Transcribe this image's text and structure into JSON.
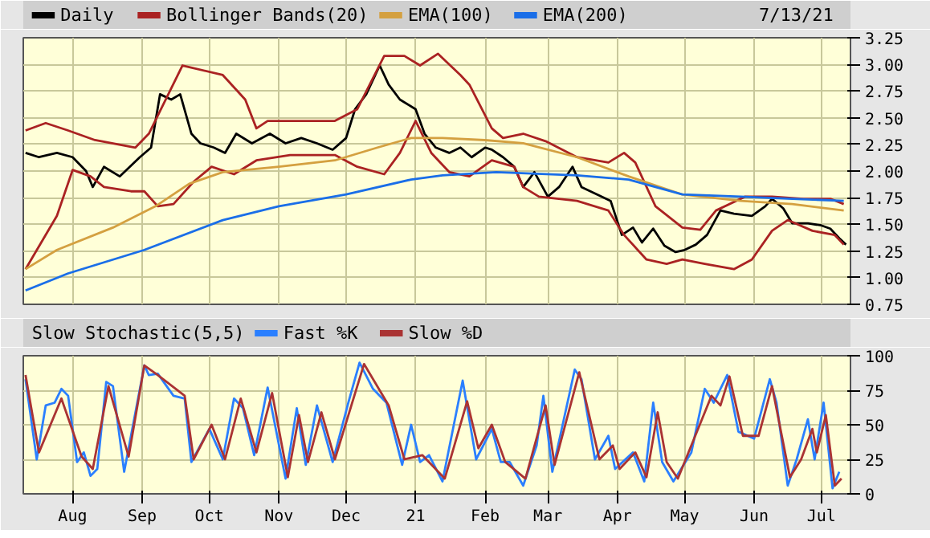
{
  "chart_data": [
    {
      "type": "line",
      "annotations": [
        "7/13/21"
      ],
      "legend": "top",
      "grid": true,
      "tick_labels": "y",
      "xlim": [
        "2020-07-10",
        "2021-07-14"
      ],
      "xticks": [
        {
          "value": "2020-08-01",
          "label": null
        },
        {
          "value": "2020-09-01",
          "label": null
        },
        {
          "value": "2020-10-01",
          "label": null
        },
        {
          "value": "2020-11-01",
          "label": null
        },
        {
          "value": "2020-12-01",
          "label": null
        },
        {
          "value": "2021-01-01",
          "label": null
        },
        {
          "value": "2021-02-01",
          "label": null
        },
        {
          "value": "2021-03-01",
          "label": null
        },
        {
          "value": "2021-04-01",
          "label": null
        },
        {
          "value": "2021-05-01",
          "label": null
        },
        {
          "value": "2021-06-01",
          "label": null
        },
        {
          "value": "2021-07-01",
          "label": null
        }
      ],
      "ylim": [
        0.75,
        3.25
      ],
      "yticks": [
        {
          "value": 0.75,
          "label": "0.75"
        },
        {
          "value": 1,
          "label": "1.00"
        },
        {
          "value": 1.25,
          "label": "1.25"
        },
        {
          "value": 1.5,
          "label": "1.50"
        },
        {
          "value": 1.75,
          "label": "1.75"
        },
        {
          "value": 2,
          "label": "2.00"
        },
        {
          "value": 2.25,
          "label": "2.25"
        },
        {
          "value": 2.5,
          "label": "2.50"
        },
        {
          "value": 2.75,
          "label": "2.75"
        },
        {
          "value": 3,
          "label": "3.00"
        },
        {
          "value": 3.25,
          "label": "3.25"
        }
      ],
      "series": [
        {
          "name": "Daily",
          "color": "#000000",
          "x": [
            "2020-07-11",
            "2020-07-17",
            "2020-07-25",
            "2020-08-01",
            "2020-08-07",
            "2020-08-10",
            "2020-08-15",
            "2020-08-22",
            "2020-08-31",
            "2020-09-05",
            "2020-09-09",
            "2020-09-14",
            "2020-09-18",
            "2020-09-23",
            "2020-09-27",
            "2020-10-03",
            "2020-10-08",
            "2020-10-13",
            "2020-10-20",
            "2020-10-28",
            "2020-11-04",
            "2020-11-11",
            "2020-11-18",
            "2020-11-25",
            "2020-12-01",
            "2020-12-05",
            "2020-12-10",
            "2020-12-16",
            "2020-12-20",
            "2020-12-25",
            "2021-01-01",
            "2021-01-05",
            "2021-01-10",
            "2021-01-16",
            "2021-01-21",
            "2021-01-26",
            "2021-02-01",
            "2021-02-04",
            "2021-02-09",
            "2021-02-14",
            "2021-02-18",
            "2021-02-23",
            "2021-03-01",
            "2021-03-06",
            "2021-03-12",
            "2021-03-16",
            "2021-03-23",
            "2021-03-29",
            "2021-04-03",
            "2021-04-08",
            "2021-04-12",
            "2021-04-17",
            "2021-04-22",
            "2021-04-27",
            "2021-05-01",
            "2021-05-06",
            "2021-05-11",
            "2021-05-17",
            "2021-05-23",
            "2021-05-31",
            "2021-06-06",
            "2021-06-09",
            "2021-06-14",
            "2021-06-18",
            "2021-06-25",
            "2021-07-01",
            "2021-07-05",
            "2021-07-09",
            "2021-07-12"
          ],
          "values": [
            2.17,
            2.13,
            2.17,
            2.13,
            2.0,
            1.85,
            2.04,
            1.95,
            2.13,
            2.22,
            2.72,
            2.67,
            2.72,
            2.35,
            2.26,
            2.22,
            2.17,
            2.35,
            2.26,
            2.35,
            2.26,
            2.31,
            2.26,
            2.2,
            2.31,
            2.58,
            2.72,
            2.99,
            2.81,
            2.67,
            2.58,
            2.35,
            2.22,
            2.17,
            2.22,
            2.13,
            2.22,
            2.2,
            2.13,
            2.04,
            1.85,
            1.99,
            1.76,
            1.85,
            2.04,
            1.85,
            1.78,
            1.72,
            1.4,
            1.47,
            1.33,
            1.46,
            1.3,
            1.24,
            1.26,
            1.31,
            1.4,
            1.63,
            1.6,
            1.58,
            1.67,
            1.74,
            1.65,
            1.51,
            1.51,
            1.49,
            1.46,
            1.37,
            1.31
          ]
        },
        {
          "name": "Bollinger Bands(20)",
          "color": "#aa2222",
          "x": [
            "2020-07-11",
            "2020-07-20",
            "2020-07-30",
            "2020-08-11",
            "2020-08-29",
            "2020-09-04",
            "2020-09-19",
            "2020-10-07",
            "2020-10-17",
            "2020-10-22",
            "2020-10-27",
            "2020-11-26",
            "2020-12-06",
            "2020-12-18",
            "2020-12-27",
            "2021-01-03",
            "2021-01-11",
            "2021-01-21",
            "2021-01-25",
            "2021-02-04",
            "2021-02-09",
            "2021-02-18",
            "2021-02-28",
            "2021-03-14",
            "2021-03-28",
            "2021-04-04",
            "2021-04-09",
            "2021-04-18",
            "2021-04-30",
            "2021-05-08",
            "2021-05-15",
            "2021-05-28",
            "2021-06-09",
            "2021-06-23",
            "2021-07-05",
            "2021-07-11"
          ],
          "values": [
            2.38,
            2.45,
            2.38,
            2.29,
            2.22,
            2.35,
            2.99,
            2.9,
            2.67,
            2.4,
            2.47,
            2.47,
            2.58,
            3.08,
            3.08,
            2.99,
            3.1,
            2.9,
            2.81,
            2.4,
            2.31,
            2.35,
            2.28,
            2.13,
            2.08,
            2.17,
            2.08,
            1.67,
            1.47,
            1.45,
            1.63,
            1.76,
            1.76,
            1.74,
            1.74,
            1.69
          ]
        },
        {
          "color": "#aa2222",
          "x": [
            "2020-07-11",
            "2020-07-25",
            "2020-08-01",
            "2020-08-09",
            "2020-08-15",
            "2020-08-27",
            "2020-09-02",
            "2020-09-08",
            "2020-09-15",
            "2020-09-24",
            "2020-10-02",
            "2020-10-12",
            "2020-10-22",
            "2020-11-06",
            "2020-11-26",
            "2020-12-06",
            "2020-12-18",
            "2020-12-25",
            "2021-01-01",
            "2021-01-08",
            "2021-01-16",
            "2021-01-25",
            "2021-02-04",
            "2021-02-14",
            "2021-02-18",
            "2021-02-25",
            "2021-03-14",
            "2021-03-28",
            "2021-04-04",
            "2021-04-14",
            "2021-04-23",
            "2021-04-30",
            "2021-05-10",
            "2021-05-23",
            "2021-05-31",
            "2021-06-09",
            "2021-06-16",
            "2021-06-27",
            "2021-07-07",
            "2021-07-11"
          ],
          "values": [
            1.08,
            1.58,
            2.01,
            1.95,
            1.85,
            1.81,
            1.81,
            1.67,
            1.69,
            1.9,
            2.04,
            1.97,
            2.1,
            2.15,
            2.15,
            2.04,
            1.97,
            2.17,
            2.47,
            2.17,
            1.99,
            1.95,
            2.1,
            2.04,
            1.85,
            1.76,
            1.72,
            1.63,
            1.4,
            1.17,
            1.13,
            1.17,
            1.13,
            1.08,
            1.17,
            1.44,
            1.54,
            1.44,
            1.4,
            1.31
          ]
        },
        {
          "name": "EMA(100)",
          "color": "#d4a040",
          "x": [
            "2020-07-11",
            "2020-07-25",
            "2020-08-19",
            "2020-09-07",
            "2020-09-22",
            "2020-10-07",
            "2020-11-01",
            "2020-11-26",
            "2020-12-15",
            "2020-12-30",
            "2021-01-13",
            "2021-02-01",
            "2021-02-18",
            "2021-03-14",
            "2021-04-06",
            "2021-04-30",
            "2021-05-26",
            "2021-06-18",
            "2021-07-11"
          ],
          "values": [
            1.08,
            1.26,
            1.47,
            1.67,
            1.88,
            1.99,
            2.04,
            2.1,
            2.22,
            2.31,
            2.31,
            2.29,
            2.26,
            2.13,
            1.95,
            1.78,
            1.72,
            1.69,
            1.63
          ]
        },
        {
          "name": "EMA(200)",
          "color": "#1a6ee8",
          "x": [
            "2020-07-11",
            "2020-07-30",
            "2020-09-02",
            "2020-10-07",
            "2020-11-01",
            "2020-12-01",
            "2020-12-30",
            "2021-01-13",
            "2021-02-06",
            "2021-03-14",
            "2021-04-06",
            "2021-04-30",
            "2021-05-26",
            "2021-06-18",
            "2021-07-11"
          ],
          "values": [
            0.88,
            1.04,
            1.26,
            1.54,
            1.67,
            1.78,
            1.92,
            1.96,
            1.99,
            1.96,
            1.92,
            1.78,
            1.76,
            1.74,
            1.72
          ]
        }
      ]
    },
    {
      "type": "line",
      "title": "Slow Stochastic(5,5)",
      "legend": "top",
      "grid": true,
      "xlim": [
        "2020-07-10",
        "2021-07-14"
      ],
      "xticks": [
        {
          "value": "2020-08-01",
          "label": "Aug"
        },
        {
          "value": "2020-09-01",
          "label": "Sep"
        },
        {
          "value": "2020-10-01",
          "label": "Oct"
        },
        {
          "value": "2020-11-01",
          "label": "Nov"
        },
        {
          "value": "2020-12-01",
          "label": "Dec"
        },
        {
          "value": "2021-01-01",
          "label": "21"
        },
        {
          "value": "2021-02-01",
          "label": "Feb"
        },
        {
          "value": "2021-03-01",
          "label": "Mar"
        },
        {
          "value": "2021-04-01",
          "label": "Apr"
        },
        {
          "value": "2021-05-01",
          "label": "May"
        },
        {
          "value": "2021-06-01",
          "label": "Jun"
        },
        {
          "value": "2021-07-01",
          "label": "Jul"
        }
      ],
      "ylim": [
        0,
        100
      ],
      "yticks": [
        0,
        25,
        50,
        75,
        100
      ],
      "series": [
        {
          "name": "Fast %K",
          "color": "#2a7fff",
          "x": [
            "2020-07-11",
            "2020-07-16",
            "2020-07-20",
            "2020-07-24",
            "2020-07-27",
            "2020-07-30",
            "2020-08-03",
            "2020-08-06",
            "2020-08-09",
            "2020-08-12",
            "2020-08-16",
            "2020-08-19",
            "2020-08-24",
            "2020-09-02",
            "2020-09-04",
            "2020-09-08",
            "2020-09-15",
            "2020-09-20",
            "2020-09-23",
            "2020-10-01",
            "2020-10-07",
            "2020-10-12",
            "2020-10-16",
            "2020-10-21",
            "2020-10-27",
            "2020-11-04",
            "2020-11-09",
            "2020-11-13",
            "2020-11-18",
            "2020-11-25",
            "2020-12-02",
            "2020-12-07",
            "2020-12-13",
            "2020-12-19",
            "2020-12-26",
            "2020-12-30",
            "2021-01-03",
            "2021-01-07",
            "2021-01-13",
            "2021-01-22",
            "2021-01-28",
            "2021-02-04",
            "2021-02-08",
            "2021-02-12",
            "2021-02-18",
            "2021-02-24",
            "2021-02-27",
            "2021-03-03",
            "2021-03-13",
            "2021-03-16",
            "2021-03-22",
            "2021-03-28",
            "2021-03-31",
            "2021-04-08",
            "2021-04-13",
            "2021-04-17",
            "2021-04-21",
            "2021-04-26",
            "2021-05-04",
            "2021-05-10",
            "2021-05-14",
            "2021-05-20",
            "2021-05-25",
            "2021-06-01",
            "2021-06-08",
            "2021-06-11",
            "2021-06-16",
            "2021-06-20",
            "2021-06-25",
            "2021-06-28",
            "2021-07-02",
            "2021-07-06",
            "2021-07-09"
          ],
          "values": [
            83,
            25,
            64,
            66,
            76,
            71,
            23,
            30,
            13,
            18,
            81,
            78,
            16,
            93,
            86,
            87,
            71,
            69,
            23,
            47,
            25,
            69,
            62,
            28,
            77,
            11,
            62,
            21,
            64,
            23,
            66,
            95,
            76,
            66,
            21,
            50,
            23,
            28,
            9,
            82,
            25,
            47,
            23,
            23,
            6,
            35,
            71,
            16,
            90,
            83,
            25,
            42,
            18,
            30,
            9,
            66,
            23,
            9,
            30,
            76,
            66,
            86,
            45,
            40,
            83,
            66,
            6,
            25,
            54,
            25,
            66,
            4,
            16
          ]
        },
        {
          "name": "Slow %D",
          "color": "#aa3333",
          "x": [
            "2020-07-11",
            "2020-07-17",
            "2020-07-27",
            "2020-08-05",
            "2020-08-10",
            "2020-08-17",
            "2020-08-26",
            "2020-09-02",
            "2020-09-08",
            "2020-09-20",
            "2020-09-24",
            "2020-10-02",
            "2020-10-08",
            "2020-10-15",
            "2020-10-22",
            "2020-10-29",
            "2020-11-05",
            "2020-11-10",
            "2020-11-14",
            "2020-11-20",
            "2020-11-26",
            "2020-12-09",
            "2020-12-20",
            "2020-12-27",
            "2021-01-04",
            "2021-01-14",
            "2021-01-24",
            "2021-01-29",
            "2021-02-04",
            "2021-02-10",
            "2021-02-19",
            "2021-02-28",
            "2021-03-04",
            "2021-03-15",
            "2021-03-24",
            "2021-03-30",
            "2021-04-02",
            "2021-04-09",
            "2021-04-14",
            "2021-04-19",
            "2021-04-23",
            "2021-04-28",
            "2021-05-13",
            "2021-05-17",
            "2021-05-21",
            "2021-05-27",
            "2021-06-03",
            "2021-06-09",
            "2021-06-17",
            "2021-06-22",
            "2021-06-27",
            "2021-06-29",
            "2021-07-03",
            "2021-07-07",
            "2021-07-10"
          ],
          "values": [
            86,
            30,
            69,
            27,
            18,
            78,
            27,
            93,
            86,
            71,
            25,
            50,
            25,
            69,
            30,
            73,
            12,
            57,
            23,
            59,
            25,
            94,
            64,
            25,
            28,
            11,
            67,
            33,
            50,
            23,
            11,
            64,
            21,
            88,
            25,
            35,
            18,
            30,
            12,
            59,
            23,
            11,
            71,
            64,
            85,
            42,
            42,
            78,
            12,
            25,
            47,
            30,
            57,
            6,
            11
          ]
        }
      ]
    }
  ]
}
